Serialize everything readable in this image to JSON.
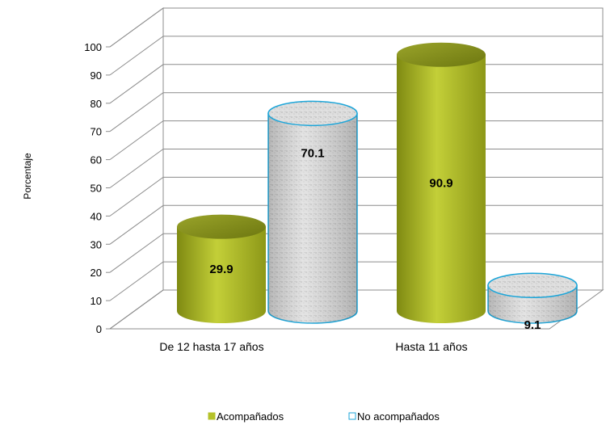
{
  "chart_data": {
    "type": "bar",
    "style": "3d-cylinder",
    "categories": [
      "De 12 hasta 17 años",
      "Hasta 11 años"
    ],
    "series": [
      {
        "name": "Acompañados",
        "values": [
          29.9,
          90.9
        ],
        "color": "#b5c22a"
      },
      {
        "name": "No acompañados",
        "values": [
          70.1,
          9.1
        ],
        "color": "#d9d9d9",
        "outline": "#1ea6d9"
      }
    ],
    "data_labels": [
      "29.9",
      "70.1",
      "90.9",
      "9.1"
    ],
    "ylabel": "Porcentaje",
    "xlabel": "",
    "ylim": [
      0,
      100
    ],
    "yticks": [
      "0",
      "10",
      "20",
      "30",
      "40",
      "50",
      "60",
      "70",
      "80",
      "90",
      "100"
    ],
    "grid": true,
    "legend_position": "bottom"
  }
}
